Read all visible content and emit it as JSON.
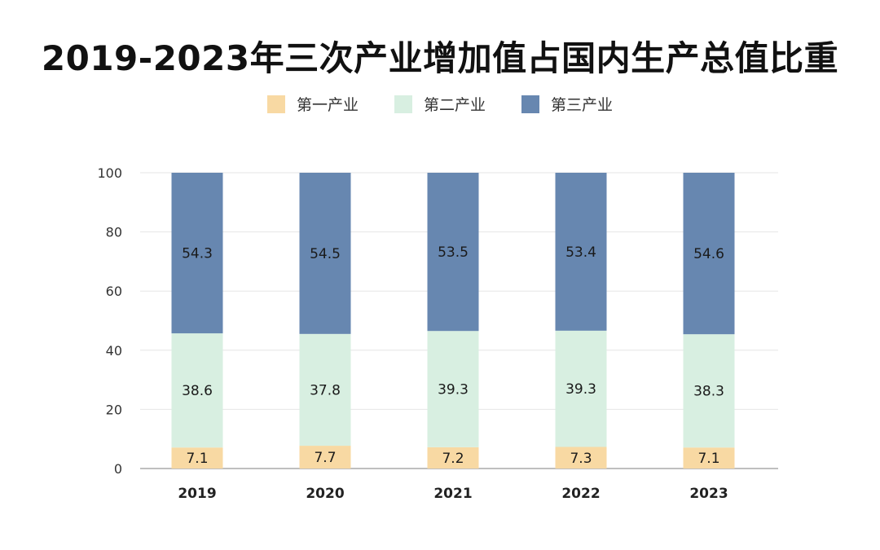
{
  "title": "2019-2023年三次产业增加值占国内生产总值比重",
  "chart_data": {
    "type": "bar",
    "stacked": true,
    "title": "2019-2023年三次产业增加值占国内生产总值比重",
    "xlabel": "",
    "ylabel": "",
    "categories": [
      "2019",
      "2020",
      "2021",
      "2022",
      "2023"
    ],
    "ylim": [
      0,
      100
    ],
    "yticks": [
      0,
      20,
      40,
      60,
      80,
      100
    ],
    "grid": true,
    "legend_position": "top",
    "series": [
      {
        "name": "第一产业",
        "color": "#f8d9a3",
        "values": [
          7.1,
          7.7,
          7.2,
          7.3,
          7.1
        ]
      },
      {
        "name": "第二产业",
        "color": "#d8efe1",
        "values": [
          38.6,
          37.8,
          39.3,
          39.3,
          38.3
        ]
      },
      {
        "name": "第三产业",
        "color": "#6787b0",
        "values": [
          54.3,
          54.5,
          53.5,
          53.4,
          54.6
        ]
      }
    ]
  }
}
